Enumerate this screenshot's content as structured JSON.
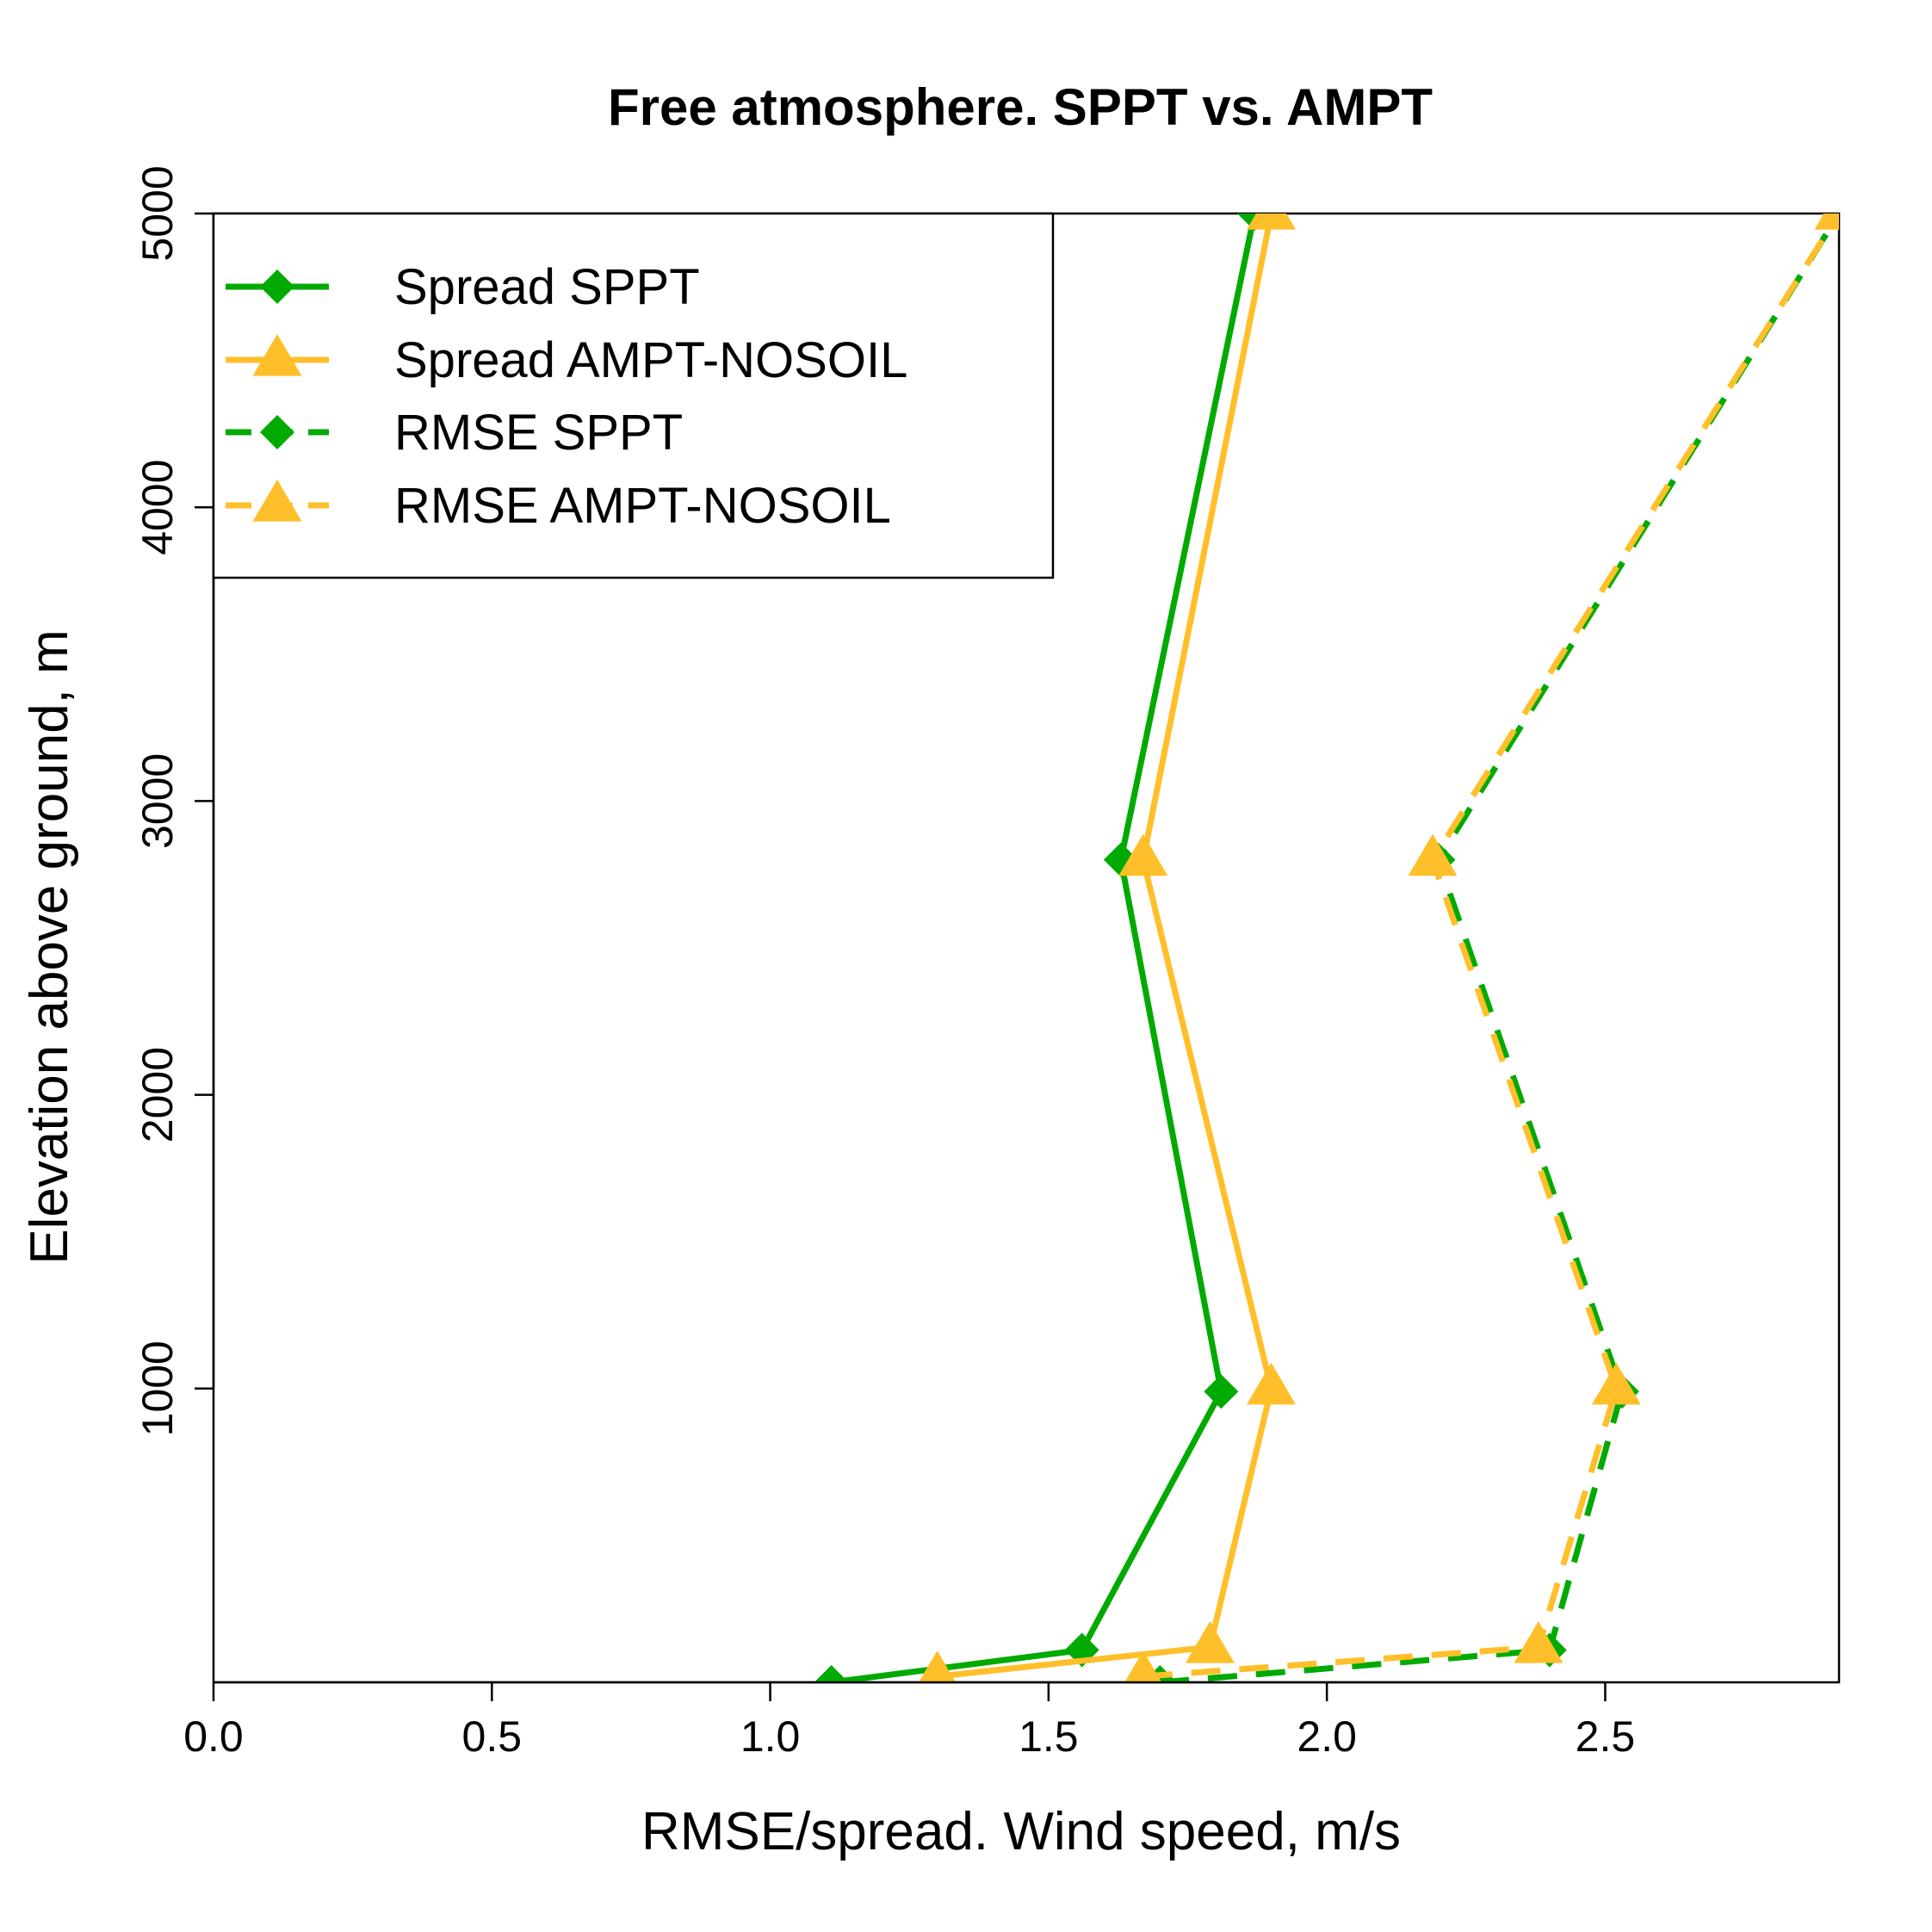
{
  "chart_data": {
    "type": "line",
    "title": "Free atmosphere. SPPT vs. AMPT",
    "xlabel": "RMSE/spread. Wind speed, m/s",
    "ylabel": "Elevation above ground, m",
    "xlim": [
      0,
      2.92
    ],
    "ylim": [
      0,
      5000
    ],
    "x_ticks": [
      "0.0",
      "0.5",
      "1.0",
      "1.5",
      "2.0",
      "2.5"
    ],
    "y_ticks": [
      "1000",
      "2000",
      "3000",
      "4000",
      "5000"
    ],
    "grid": false,
    "legend_position": "top-left",
    "series": [
      {
        "name": "Spread SPPT",
        "color": "#00AA00",
        "line_style": "solid",
        "marker": "diamond",
        "points": [
          [
            1.11,
            0
          ],
          [
            1.56,
            110
          ],
          [
            1.81,
            990
          ],
          [
            1.63,
            2800
          ],
          [
            1.87,
            5000
          ]
        ]
      },
      {
        "name": "Spread AMPT-NOSOIL",
        "color": "#FFBF2A",
        "line_style": "solid",
        "marker": "triangle",
        "points": [
          [
            1.3,
            20
          ],
          [
            1.79,
            120
          ],
          [
            1.9,
            1000
          ],
          [
            1.67,
            2800
          ],
          [
            1.9,
            5000
          ]
        ]
      },
      {
        "name": "RMSE SPPT",
        "color": "#00AA00",
        "line_style": "dashed",
        "marker": "diamond",
        "points": [
          [
            1.7,
            0
          ],
          [
            2.4,
            110
          ],
          [
            2.53,
            990
          ],
          [
            2.2,
            2800
          ],
          [
            2.92,
            5000
          ]
        ]
      },
      {
        "name": "RMSE AMPT-NOSOIL",
        "color": "#FFBF2A",
        "line_style": "dashed",
        "marker": "triangle",
        "points": [
          [
            1.67,
            20
          ],
          [
            2.38,
            120
          ],
          [
            2.52,
            1000
          ],
          [
            2.19,
            2800
          ],
          [
            2.92,
            5000
          ]
        ]
      }
    ]
  }
}
